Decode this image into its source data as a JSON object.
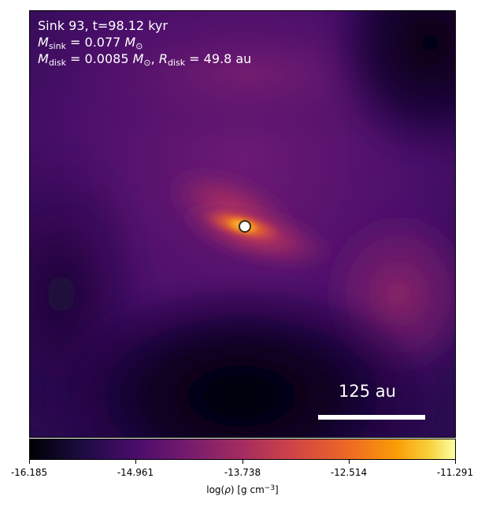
{
  "annotation": {
    "line1": "Sink 93, t=98.12 kyr",
    "msink_symbol": "M",
    "msink_sub": "sink",
    "msink_value": " = 0.077 ",
    "msun_symbol": "M",
    "msun_sub": "⊙",
    "mdisk_symbol": "M",
    "mdisk_sub": "disk",
    "mdisk_value": " = 0.0085 ",
    "mdisk_sun_symbol": "M",
    "mdisk_sun_sub": "⊙",
    "separator": ", ",
    "rdisk_symbol": "R",
    "rdisk_sub": "disk",
    "rdisk_value": " = 49.8 au"
  },
  "scalebar": {
    "label": "125 au"
  },
  "colorbar": {
    "ticks": [
      "-16.185",
      "-14.961",
      "-13.738",
      "-12.514",
      "-11.291"
    ],
    "label_prefix": "log(",
    "label_rho": "ρ",
    "label_mid": ") [g cm",
    "label_exp": "−3",
    "label_suffix": "]",
    "colormap": "inferno"
  },
  "colors": {
    "background_mid": "#5a1470",
    "background_dark": "#000004",
    "disk_core": "#f7a020",
    "sink_marker_fill": "#ffffff"
  }
}
